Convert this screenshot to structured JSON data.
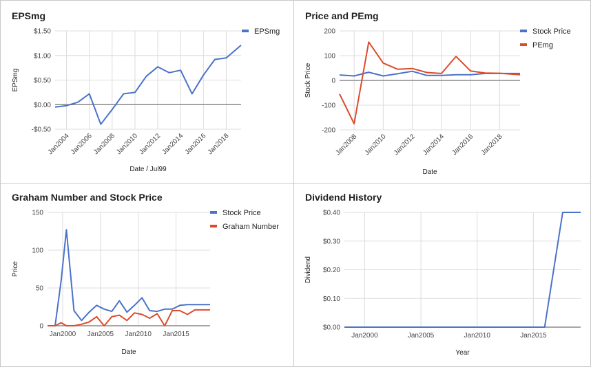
{
  "chart_data": [
    {
      "type": "line",
      "title": "EPSmg",
      "xlabel": "Date / Jul99",
      "ylabel": "EPSmg",
      "x_ticks": [
        "Jan2004",
        "Jan2006",
        "Jan2008",
        "Jan2010",
        "Jan2012",
        "Jan2014",
        "Jan2016",
        "Jan2018"
      ],
      "y_ticks": [
        -0.5,
        0,
        0.5,
        1,
        1.5
      ],
      "y_tick_labels": [
        "-$0.50",
        "$0.00",
        "$0.50",
        "$1.00",
        "$1.50"
      ],
      "xlim": [
        2003.0,
        2019.3
      ],
      "ylim": [
        -0.5,
        1.5
      ],
      "baseline": 0,
      "grid": true,
      "legend_position": "right",
      "series": [
        {
          "name": "EPSmg",
          "color": "#4a72c8",
          "x": [
            2003.0,
            2004.0,
            2005.0,
            2006.0,
            2007.0,
            2008.0,
            2009.0,
            2010.0,
            2011.0,
            2012.0,
            2013.0,
            2014.0,
            2015.0,
            2016.0,
            2017.0,
            2018.0,
            2019.3
          ],
          "values": [
            -0.05,
            -0.02,
            0.05,
            0.22,
            -0.4,
            -0.1,
            0.22,
            0.25,
            0.58,
            0.77,
            0.65,
            0.7,
            0.22,
            0.6,
            0.92,
            0.95,
            1.21
          ]
        }
      ]
    },
    {
      "type": "line",
      "title": "Price and PEmg",
      "xlabel": "Date",
      "ylabel": "Stock Price",
      "x_ticks": [
        "Jan2008",
        "Jan2010",
        "Jan2012",
        "Jan2014",
        "Jan2016",
        "Jan2018"
      ],
      "y_ticks": [
        -200,
        -100,
        0,
        100,
        200
      ],
      "y_tick_labels": [
        "-200",
        "-100",
        "0",
        "100",
        "200"
      ],
      "xlim": [
        2007.0,
        2019.4
      ],
      "ylim": [
        -200,
        200
      ],
      "baseline": 0,
      "grid": true,
      "legend_position": "right",
      "series": [
        {
          "name": "Stock Price",
          "color": "#4a72c8",
          "x": [
            2007.0,
            2008.0,
            2009.0,
            2010.0,
            2011.0,
            2012.0,
            2013.0,
            2014.0,
            2015.0,
            2016.0,
            2017.0,
            2018.0,
            2019.4
          ],
          "values": [
            22,
            18,
            33,
            18,
            27,
            37,
            20,
            20,
            23,
            23,
            28,
            28,
            28
          ]
        },
        {
          "name": "PEmg",
          "color": "#dc4b2a",
          "x": [
            2007.0,
            2008.0,
            2009.0,
            2010.0,
            2011.0,
            2012.0,
            2013.0,
            2014.0,
            2015.0,
            2016.0,
            2017.0,
            2018.0,
            2019.4
          ],
          "values": [
            -55,
            -175,
            155,
            70,
            45,
            48,
            32,
            28,
            97,
            38,
            30,
            29,
            23
          ]
        }
      ]
    },
    {
      "type": "line",
      "title": "Graham Number and Stock Price",
      "xlabel": "Date",
      "ylabel": "Price",
      "x_ticks": [
        "Jan2000",
        "Jan2005",
        "Jan2010",
        "Jan2015"
      ],
      "y_ticks": [
        0,
        50,
        100,
        150
      ],
      "y_tick_labels": [
        "0",
        "50",
        "100",
        "150"
      ],
      "xlim": [
        1998.0,
        2019.5
      ],
      "ylim": [
        0,
        150
      ],
      "grid": true,
      "legend_position": "right",
      "series": [
        {
          "name": "Stock Price",
          "color": "#4a72c8",
          "x": [
            1998.0,
            1999.0,
            1999.8,
            2000.5,
            2001.5,
            2002.5,
            2003.5,
            2004.5,
            2005.5,
            2006.5,
            2007.5,
            2008.5,
            2009.5,
            2010.5,
            2011.5,
            2012.5,
            2013.5,
            2014.5,
            2015.5,
            2016.5,
            2017.5,
            2018.5,
            2019.5
          ],
          "values": [
            0,
            0,
            60,
            127,
            20,
            7,
            18,
            27,
            22,
            19,
            33,
            18,
            27,
            37,
            20,
            19,
            22,
            22,
            27,
            28,
            28,
            28,
            28
          ]
        },
        {
          "name": "Graham Number",
          "color": "#dc4b2a",
          "x": [
            1998.0,
            1999.0,
            1999.8,
            2000.5,
            2001.5,
            2002.5,
            2003.5,
            2004.5,
            2005.5,
            2006.5,
            2007.5,
            2008.5,
            2009.5,
            2010.5,
            2011.5,
            2012.5,
            2013.5,
            2014.5,
            2015.5,
            2016.5,
            2017.5,
            2018.5,
            2019.5
          ],
          "values": [
            0,
            0,
            4,
            0,
            0,
            2,
            5,
            12,
            0,
            12,
            14,
            7,
            17,
            15,
            10,
            16,
            0,
            20,
            20,
            15,
            21,
            21,
            21
          ]
        }
      ]
    },
    {
      "type": "line",
      "title": "Dividend History",
      "xlabel": "Year",
      "ylabel": "Dividend",
      "x_ticks": [
        "Jan2000",
        "Jan2005",
        "Jan2010",
        "Jan2015"
      ],
      "y_ticks": [
        0,
        0.1,
        0.2,
        0.3,
        0.4
      ],
      "y_tick_labels": [
        "$0.00",
        "$0.10",
        "$0.20",
        "$0.30",
        "$0.40"
      ],
      "xlim": [
        1998.2,
        2019.2
      ],
      "ylim": [
        0,
        0.4
      ],
      "grid": true,
      "legend_position": "none",
      "series": [
        {
          "name": "",
          "color": "#4a72c8",
          "x": [
            1998.2,
            2001.0,
            2005.0,
            2010.0,
            2015.0,
            2016.0,
            2017.6,
            2019.2
          ],
          "values": [
            0,
            0,
            0,
            0,
            0,
            0.0,
            0.4,
            0.4
          ]
        }
      ]
    }
  ]
}
